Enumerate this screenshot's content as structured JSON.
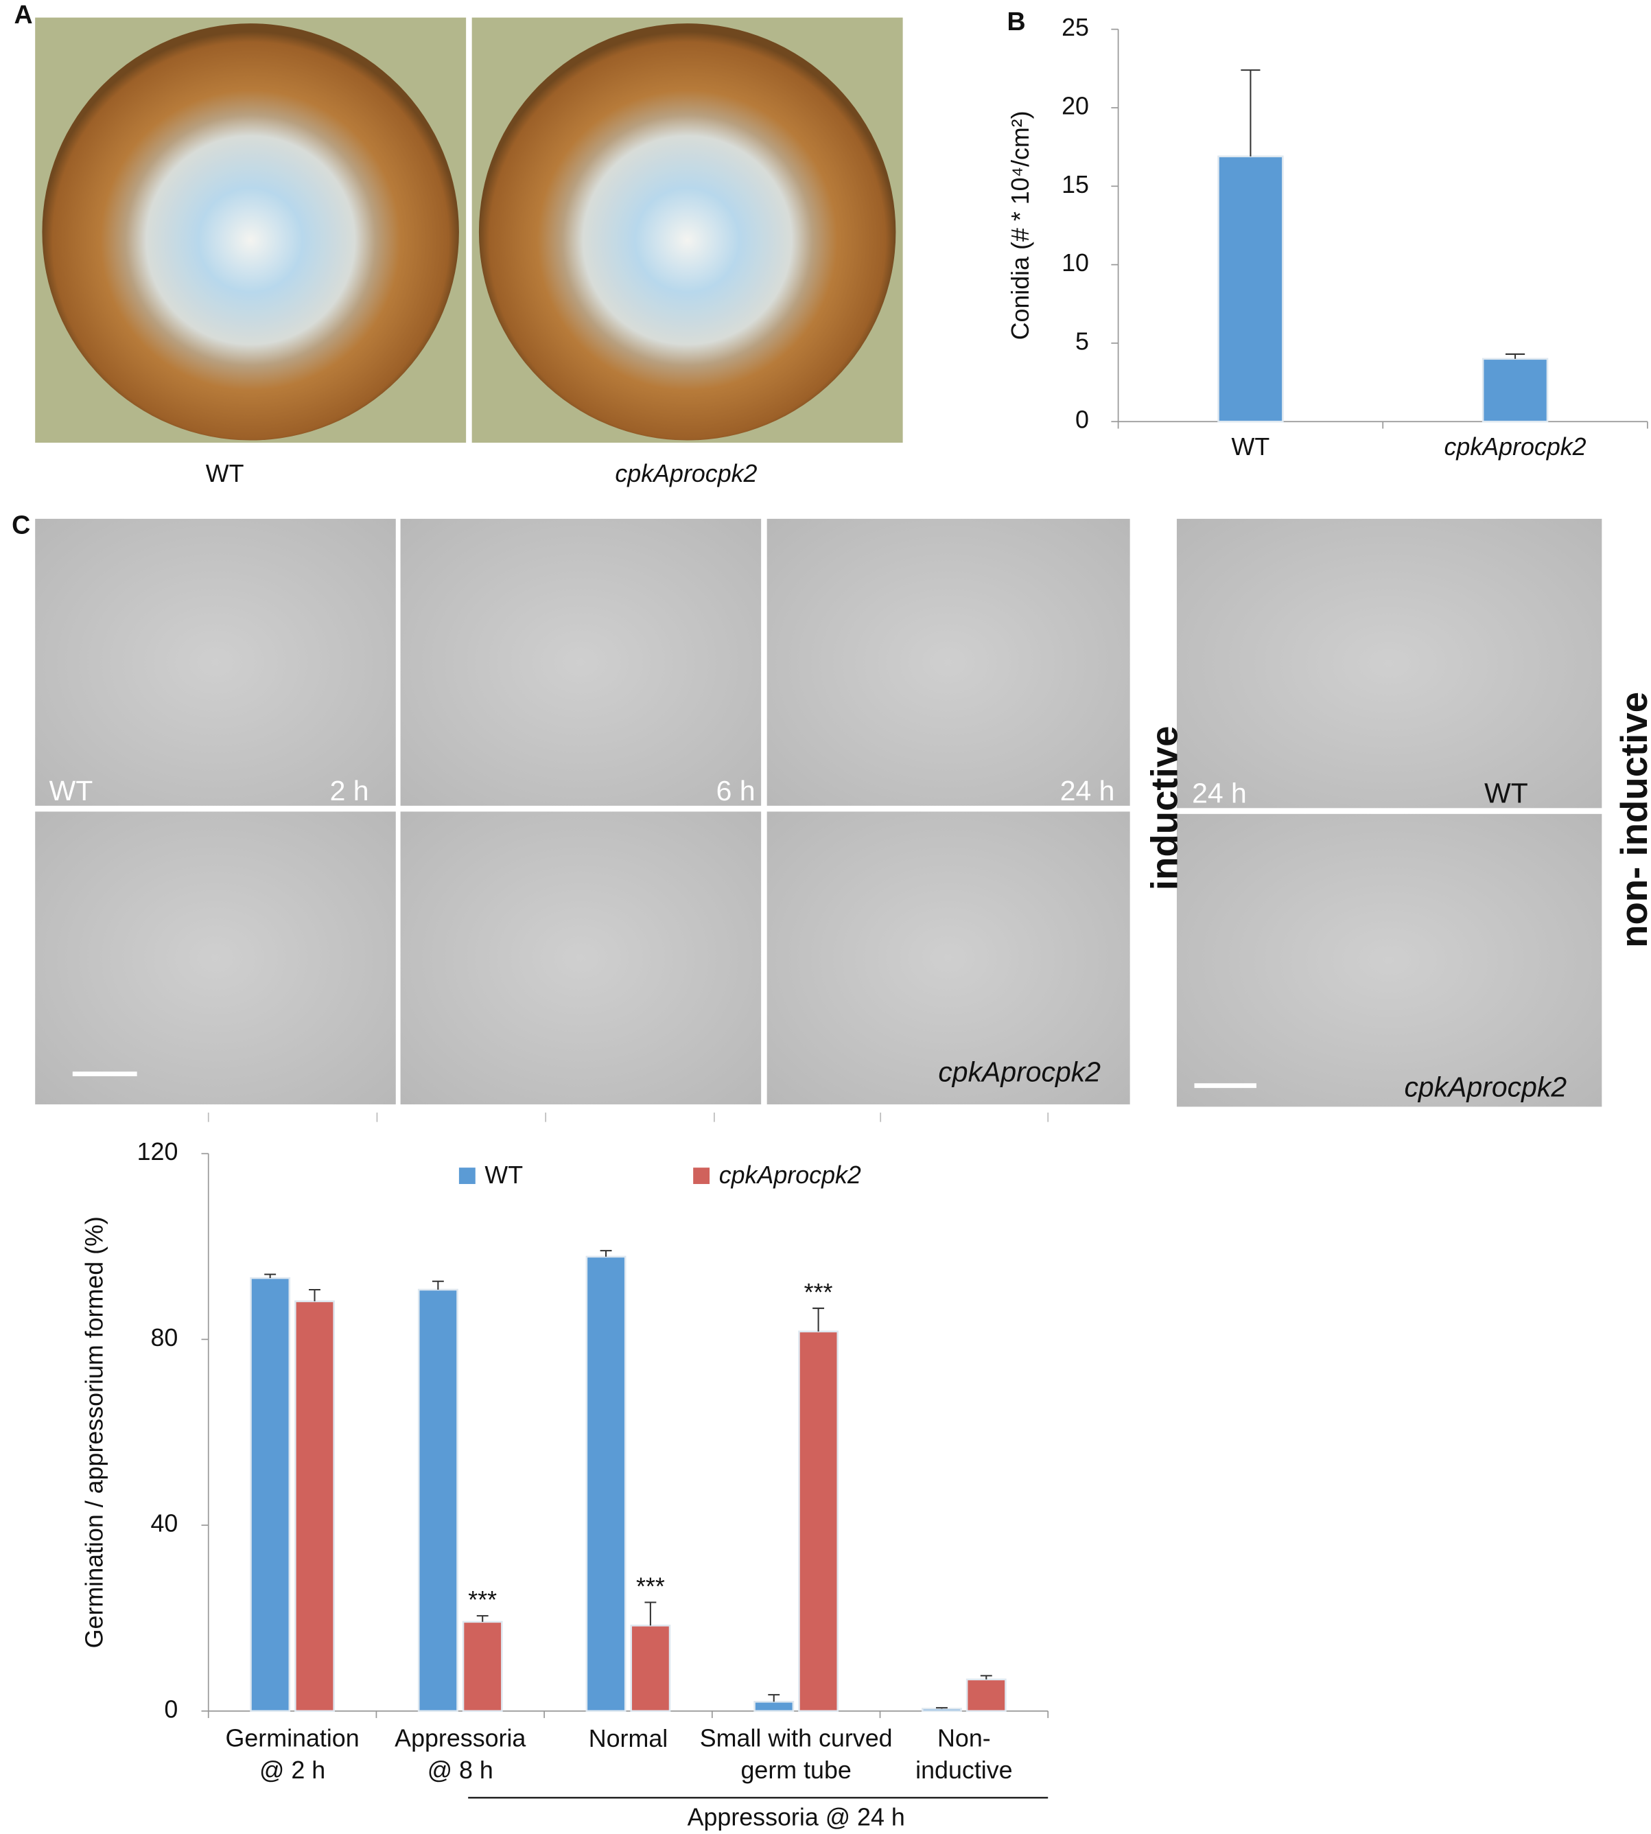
{
  "panel_labels": [
    "A",
    "B",
    "C"
  ],
  "plates": {
    "wt_label": "WT",
    "mutant_label": "cpkAprocpk2"
  },
  "micrographs": {
    "wt_label": "WT",
    "times": [
      "2 h",
      "6 h",
      "24 h"
    ],
    "mutant_label": "cpkAprocpk2",
    "condition": "inductive",
    "right": {
      "time": "24 h",
      "wt_label": "WT",
      "mutant_label": "cpkAprocpk2",
      "condition": "non- inductive"
    }
  },
  "chart_data": [
    {
      "type": "bar",
      "ylabel": "Conidia (# * 10⁴/cm²)",
      "categories": [
        "WT",
        "cpkAprocpk2"
      ],
      "values": [
        16.9,
        4.0
      ],
      "errors": [
        5.5,
        0.3
      ],
      "color": "#5b9bd5",
      "ylim": [
        0,
        25
      ],
      "yticks": [
        0,
        5,
        10,
        15,
        20,
        25
      ],
      "grid": false
    },
    {
      "type": "bar",
      "ylabel": "Germination / appressorium formed (%)",
      "categories": [
        "Germination\n@ 2 h",
        "Appressoria\n@ 8 h",
        "Normal",
        "Small with curved\ngerm tube",
        "Non-\ninductive"
      ],
      "group_label": "Appressoria @ 24 h",
      "series": [
        {
          "name": "WT",
          "color": "#5b9bd5",
          "values": [
            93.2,
            90.7,
            97.8,
            2.0,
            0.5
          ],
          "errors": [
            0.8,
            1.8,
            1.3,
            1.5,
            0.2
          ]
        },
        {
          "name": "cpkAprocpk2",
          "color": "#d0625c",
          "values": [
            88.2,
            19.2,
            18.4,
            81.7,
            6.8
          ],
          "errors": [
            2.5,
            1.3,
            5.0,
            5.0,
            0.8
          ]
        }
      ],
      "annotations": [
        "***",
        "***",
        "***"
      ],
      "ylim": [
        0,
        120
      ],
      "yticks": [
        0,
        40,
        80,
        120
      ],
      "grid": false,
      "legend": "top"
    }
  ]
}
